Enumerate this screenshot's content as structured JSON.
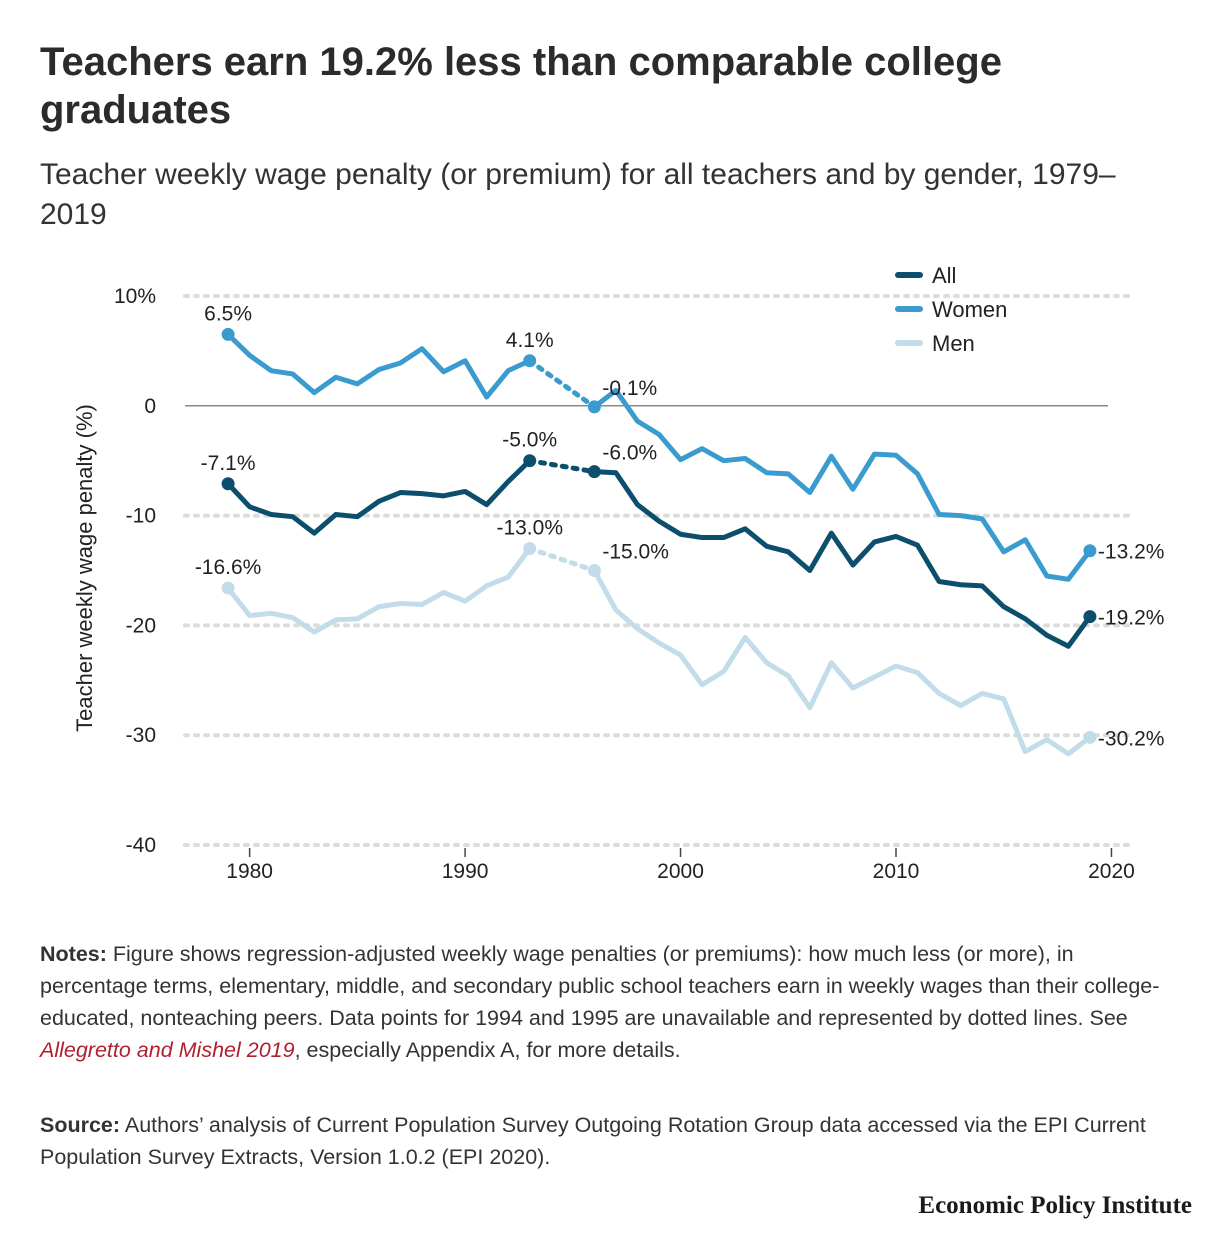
{
  "title": "Teachers earn 19.2% less than comparable college graduates",
  "subtitle": "Teacher weekly wage penalty (or premium) for all teachers and by gender, 1979–2019",
  "notes": {
    "label": "Notes:",
    "text_before": " Figure shows regression-adjusted weekly wage penalties (or premiums): how much less (or more), in percentage terms, elementary, middle, and secondary public school teachers earn in weekly wages than their college-educated, nonteaching peers. Data points for 1994 and 1995 are unavailable and represented by dotted lines. See ",
    "citation": "Allegretto and Mishel 2019",
    "text_after": ", especially Appendix A, for more details."
  },
  "source": {
    "label": "Source:",
    "text": " Authors’ analysis of Current Population Survey Outgoing Rotation Group data accessed via the EPI Current Population Survey Extracts, Version 1.0.2 (EPI 2020)."
  },
  "brand": "Economic Policy Institute",
  "colors": {
    "all": "#0b4f6c",
    "women": "#3a9bcf",
    "men": "#c2dcea",
    "cite": "#b01e2f"
  },
  "chart_data": {
    "type": "line",
    "ylabel": "Teacher weekly wage penalty (%)",
    "xlabel": "",
    "xlim": [
      1977,
      2021
    ],
    "ylim": [
      -40,
      10
    ],
    "x_ticks": [
      1980,
      1990,
      2000,
      2010,
      2020
    ],
    "x_tick_labels": [
      "1980",
      "1990",
      "2000",
      "2010",
      "2020"
    ],
    "y_ticks": [
      10,
      0,
      -10,
      -20,
      -30,
      -40
    ],
    "y_tick_labels": [
      "10%",
      "0",
      "-10",
      "-20",
      "-30",
      "-40"
    ],
    "zero_line": true,
    "grid": "dotted horizontal",
    "legend_position": "top-right",
    "gap_years": [
      1994,
      1995
    ],
    "x": [
      1979,
      1980,
      1981,
      1982,
      1983,
      1984,
      1985,
      1986,
      1987,
      1988,
      1989,
      1990,
      1991,
      1992,
      1993,
      1996,
      1997,
      1998,
      1999,
      2000,
      2001,
      2002,
      2003,
      2004,
      2005,
      2006,
      2007,
      2008,
      2009,
      2010,
      2011,
      2012,
      2013,
      2014,
      2015,
      2016,
      2017,
      2018,
      2019
    ],
    "series": [
      {
        "name": "All",
        "color": "#0b4f6c",
        "values": [
          -7.1,
          -9.2,
          -9.9,
          -10.1,
          -11.6,
          -9.9,
          -10.1,
          -8.7,
          -7.9,
          -8.0,
          -8.2,
          -7.8,
          -9.0,
          -6.9,
          -5.0,
          -6.0,
          -6.1,
          -9.0,
          -10.5,
          -11.7,
          -12.0,
          -12.0,
          -11.2,
          -12.8,
          -13.3,
          -15.0,
          -11.6,
          -14.5,
          -12.4,
          -11.9,
          -12.7,
          -16.0,
          -16.3,
          -16.4,
          -18.3,
          -19.4,
          -20.9,
          -21.9,
          -19.2
        ],
        "labels": [
          {
            "x": 1979,
            "text": "-7.1%"
          },
          {
            "x": 1993,
            "text": "-5.0%"
          },
          {
            "x": 1996,
            "text": "-6.0%"
          },
          {
            "x": 2019,
            "text": "-19.2%"
          }
        ]
      },
      {
        "name": "Women",
        "color": "#3a9bcf",
        "values": [
          6.5,
          4.6,
          3.2,
          2.9,
          1.2,
          2.6,
          2.0,
          3.3,
          3.9,
          5.2,
          3.1,
          4.1,
          0.8,
          3.2,
          4.1,
          -0.1,
          1.4,
          -1.4,
          -2.6,
          -4.9,
          -3.9,
          -5.0,
          -4.8,
          -6.1,
          -6.2,
          -7.9,
          -4.6,
          -7.6,
          -4.4,
          -4.5,
          -6.2,
          -9.9,
          -10.0,
          -10.3,
          -13.3,
          -12.2,
          -15.5,
          -15.8,
          -13.2
        ],
        "labels": [
          {
            "x": 1979,
            "text": "6.5%"
          },
          {
            "x": 1993,
            "text": "4.1%"
          },
          {
            "x": 1996,
            "text": "-0.1%"
          },
          {
            "x": 2019,
            "text": "-13.2%"
          }
        ]
      },
      {
        "name": "Men",
        "color": "#c2dcea",
        "values": [
          -16.6,
          -19.1,
          -18.9,
          -19.3,
          -20.6,
          -19.5,
          -19.4,
          -18.3,
          -18.0,
          -18.1,
          -17.0,
          -17.8,
          -16.4,
          -15.6,
          -13.0,
          -15.0,
          -18.6,
          -20.3,
          -21.6,
          -22.7,
          -25.4,
          -24.2,
          -21.1,
          -23.4,
          -24.6,
          -27.5,
          -23.4,
          -25.7,
          -24.7,
          -23.7,
          -24.3,
          -26.2,
          -27.3,
          -26.2,
          -26.7,
          -31.5,
          -30.4,
          -31.7,
          -30.2
        ],
        "labels": [
          {
            "x": 1979,
            "text": "-16.6%"
          },
          {
            "x": 1993,
            "text": "-13.0%"
          },
          {
            "x": 1996,
            "text": "-15.0%"
          },
          {
            "x": 2019,
            "text": "-30.2%"
          }
        ]
      }
    ]
  }
}
